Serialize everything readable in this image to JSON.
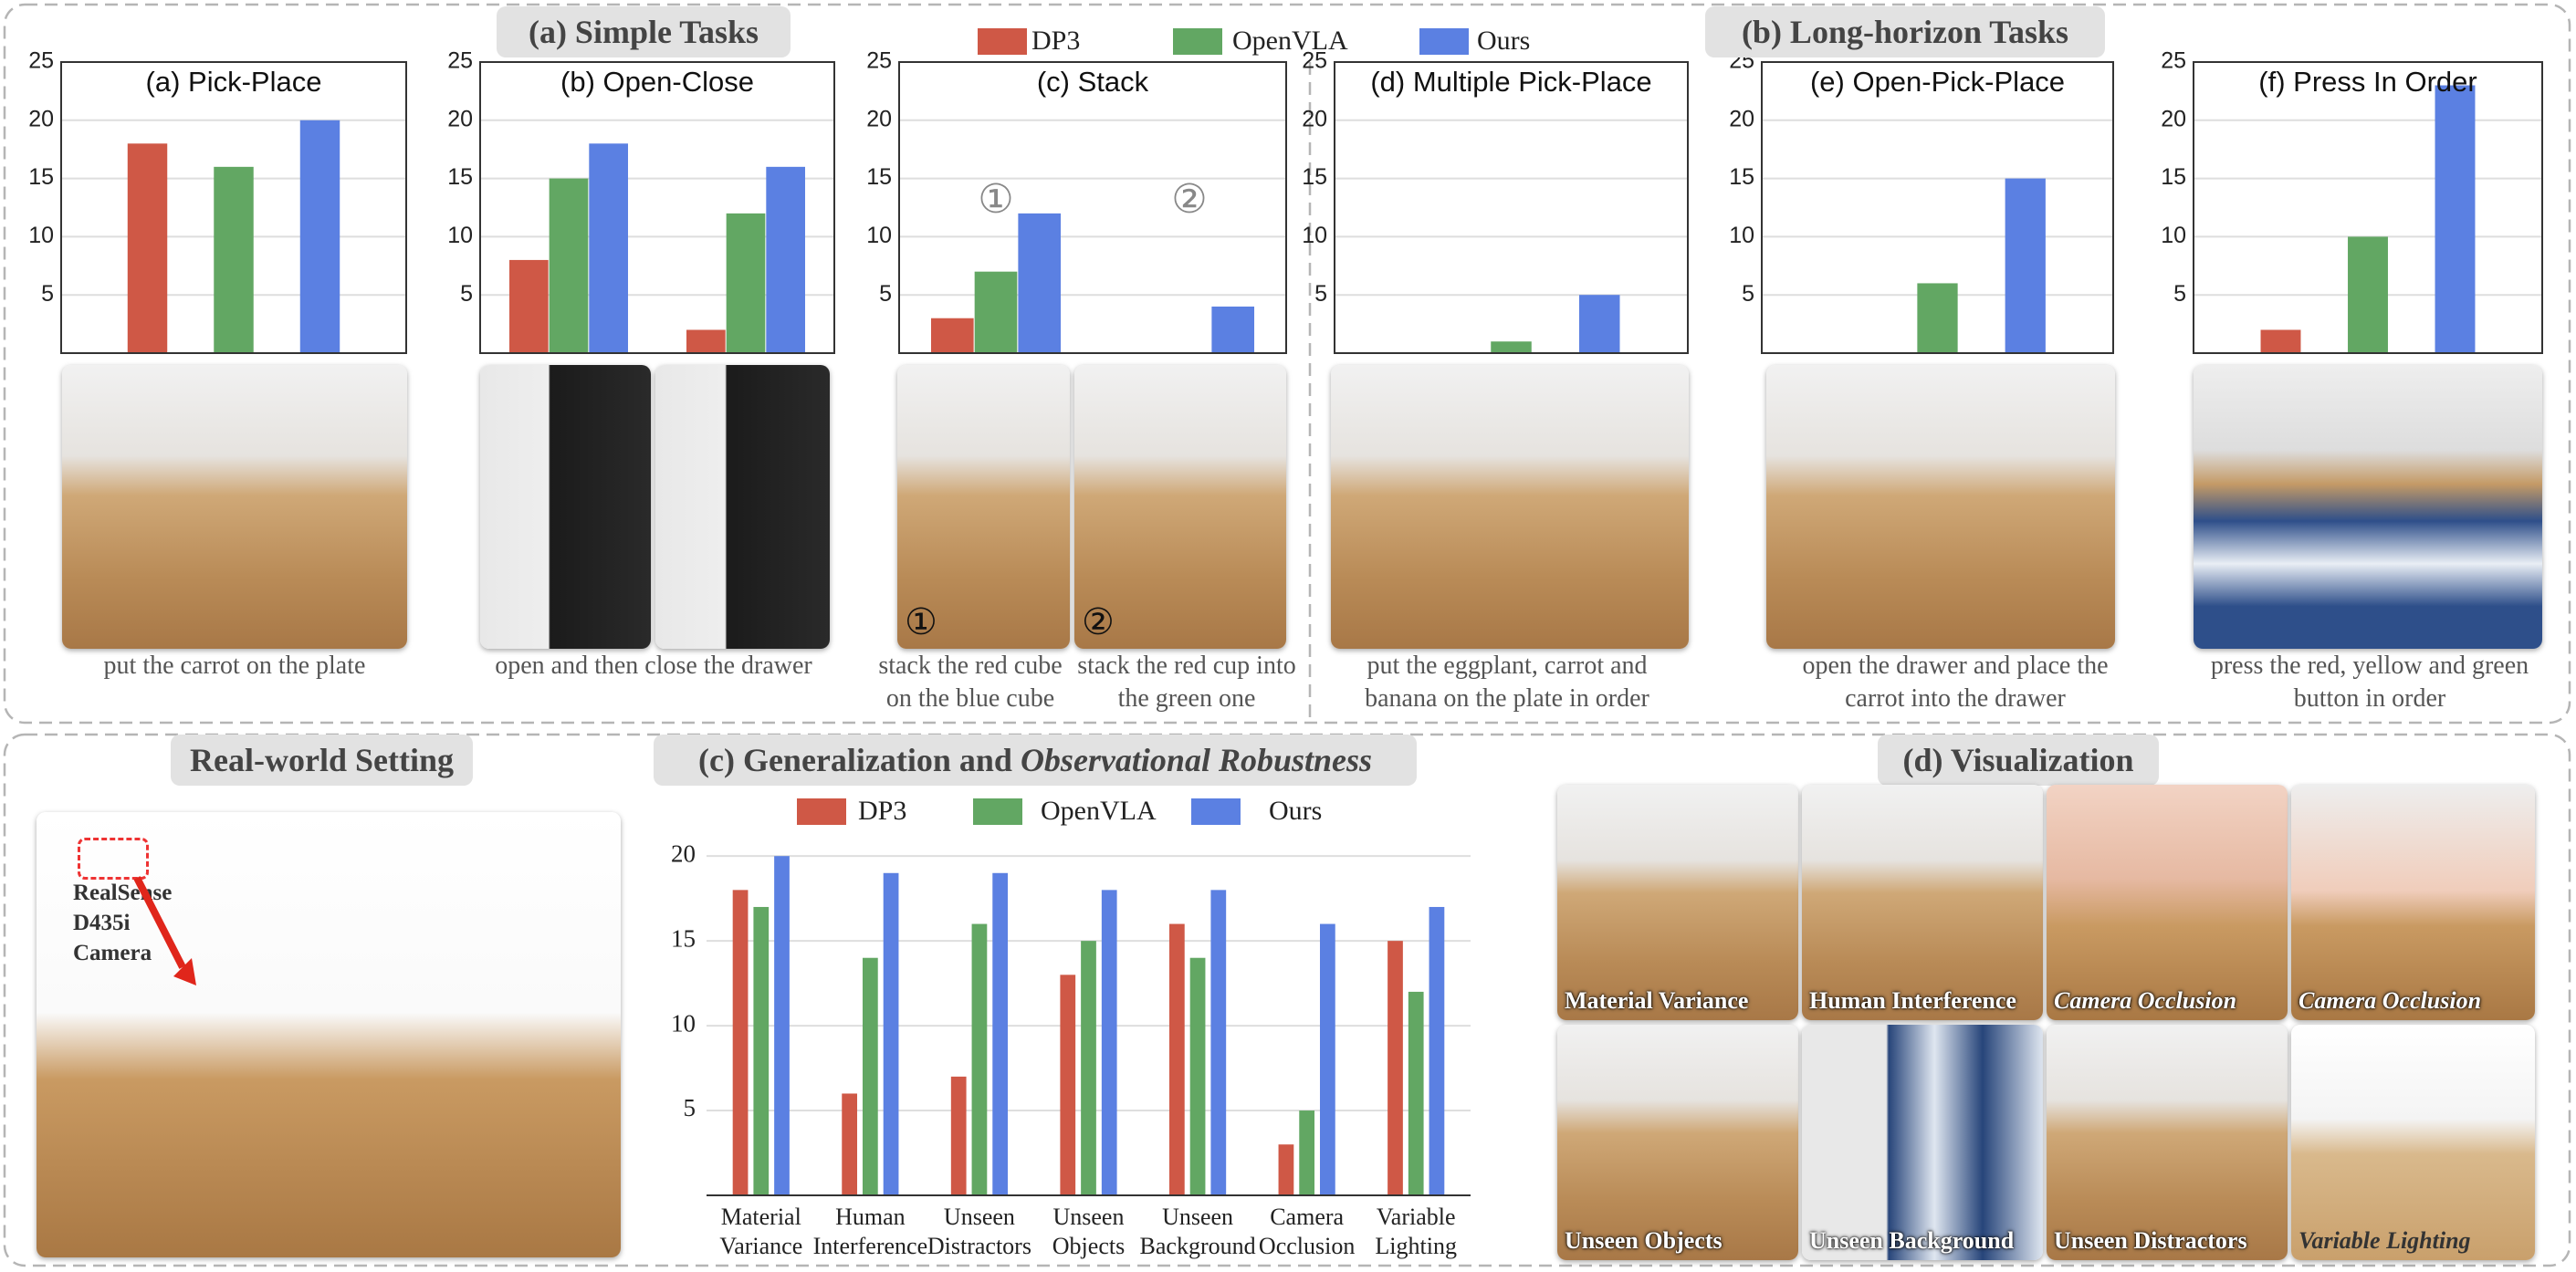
{
  "sections": {
    "simple": "(a) Simple Tasks",
    "long": "(b) Long-horizon Tasks",
    "real": "Real-world Setting",
    "vis": "(d) Visualization"
  },
  "legend": [
    {
      "name": "DP3",
      "color": "#cf5846"
    },
    {
      "name": "OpenVLA",
      "color": "#62a763"
    },
    {
      "name": "Ours",
      "color": "#5b80e2"
    }
  ],
  "chart_data": [
    {
      "type": "bar",
      "title": "(a) Pick-Place",
      "categories": [
        null
      ],
      "series": [
        {
          "color": "#cf5846",
          "values": [
            18
          ]
        },
        {
          "color": "#62a763",
          "values": [
            16
          ]
        },
        {
          "color": "#5b80e2",
          "values": [
            20
          ]
        }
      ],
      "ylim": [
        0,
        25
      ],
      "yticks": [
        5,
        10,
        15,
        20,
        25
      ],
      "grid": true
    },
    {
      "type": "bar",
      "title": "(b) Open-Close",
      "categories": [
        null,
        null
      ],
      "series": [
        {
          "color": "#cf5846",
          "values": [
            8,
            2
          ]
        },
        {
          "color": "#62a763",
          "values": [
            15,
            12
          ]
        },
        {
          "color": "#5b80e2",
          "values": [
            18,
            16
          ]
        }
      ],
      "ylim": [
        0,
        25
      ],
      "yticks": [
        5,
        10,
        15,
        20,
        25
      ],
      "grid": true
    },
    {
      "type": "bar",
      "title": "(c) Stack",
      "categories": [
        "①",
        "②"
      ],
      "series": [
        {
          "color": "#cf5846",
          "values": [
            3,
            0
          ]
        },
        {
          "color": "#62a763",
          "values": [
            7,
            0
          ]
        },
        {
          "color": "#5b80e2",
          "values": [
            12,
            4
          ]
        }
      ],
      "ylim": [
        0,
        25
      ],
      "yticks": [
        5,
        10,
        15,
        20,
        25
      ],
      "grid": true
    },
    {
      "type": "bar",
      "title": "(d)  Multiple Pick-Place",
      "categories": [
        null
      ],
      "series": [
        {
          "color": "#cf5846",
          "values": [
            0
          ]
        },
        {
          "color": "#62a763",
          "values": [
            1
          ]
        },
        {
          "color": "#5b80e2",
          "values": [
            5
          ]
        }
      ],
      "ylim": [
        0,
        25
      ],
      "yticks": [
        5,
        10,
        15,
        20,
        25
      ],
      "grid": true
    },
    {
      "type": "bar",
      "title": "(e) Open-Pick-Place",
      "categories": [
        null
      ],
      "series": [
        {
          "color": "#cf5846",
          "values": [
            0
          ]
        },
        {
          "color": "#62a763",
          "values": [
            6
          ]
        },
        {
          "color": "#5b80e2",
          "values": [
            15
          ]
        }
      ],
      "ylim": [
        0,
        25
      ],
      "yticks": [
        5,
        10,
        15,
        20,
        25
      ],
      "grid": true
    },
    {
      "type": "bar",
      "title": "(f) Press In Order",
      "categories": [
        null
      ],
      "series": [
        {
          "color": "#cf5846",
          "values": [
            2
          ]
        },
        {
          "color": "#62a763",
          "values": [
            10
          ]
        },
        {
          "color": "#5b80e2",
          "values": [
            23
          ]
        }
      ],
      "ylim": [
        0,
        25
      ],
      "yticks": [
        5,
        10,
        15,
        20,
        25
      ],
      "grid": true
    },
    {
      "type": "bar",
      "title": "(c) Generalization and",
      "title_italic": "Observational Robustness",
      "categories": [
        "Material Variance",
        "Human Interference",
        "Unseen Distractors",
        "Unseen Objects",
        "Unseen Background",
        "Camera Occlusion",
        "Variable Lighting"
      ],
      "series": [
        {
          "name": "DP3",
          "color": "#cf5846",
          "values": [
            18,
            6,
            7,
            13,
            16,
            3,
            15
          ]
        },
        {
          "name": "OpenVLA",
          "color": "#62a763",
          "values": [
            17,
            14,
            16,
            15,
            14,
            5,
            12
          ]
        },
        {
          "name": "Ours",
          "color": "#5b80e2",
          "values": [
            20,
            19,
            19,
            18,
            18,
            16,
            17
          ]
        }
      ],
      "ylim": [
        0,
        22
      ],
      "yticks": [
        5,
        10,
        15,
        20
      ],
      "grid": true
    }
  ],
  "captions": [
    "put the carrot on the plate",
    "open and then close the drawer",
    "stack the red cube on the blue cube",
    "stack the red cup into the green one",
    "put the eggplant, carrot and banana on the plate in order",
    "open the drawer and place the carrot into the drawer",
    "press the red, yellow and green button in order"
  ],
  "photo_marks": [
    "①",
    "②"
  ],
  "camera_label": [
    "RealSense",
    "D435i",
    "Camera"
  ],
  "vis_labels": [
    "Material  Variance",
    "Human Interference",
    "Camera Occlusion",
    "Camera Occlusion",
    "Unseen Objects",
    "Unseen Background",
    "Unseen Distractors",
    "Variable Lighting"
  ]
}
